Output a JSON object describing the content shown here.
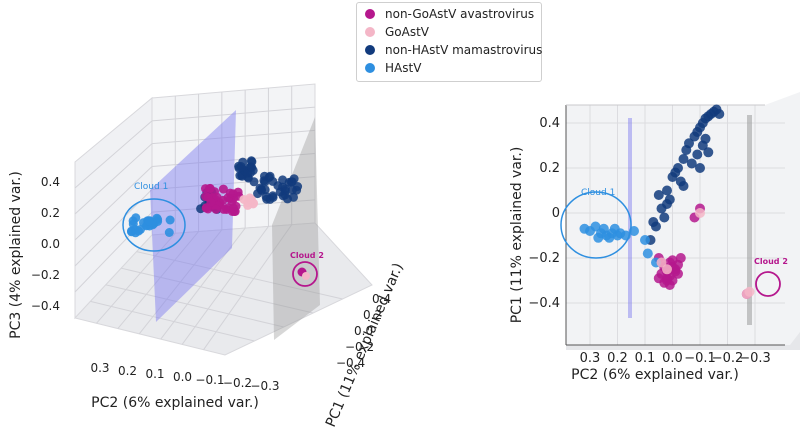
{
  "chart_data": [
    {
      "type": "scatter",
      "projection": "3d",
      "xlabel": "PC1 (11% explained var.)",
      "ylabel": "PC2 (6% explained var.)",
      "zlabel": "PC3 (4% explained var.)",
      "x_ticks": [
        "0.4",
        "0.2",
        "0.0",
        "−0.2",
        "−0.4"
      ],
      "y_ticks": [
        "0.3",
        "0.2",
        "0.1",
        "0.0",
        "−0.1",
        "−0.2",
        "−0.3"
      ],
      "z_ticks": [
        "0.4",
        "0.2",
        "0.0",
        "−0.2",
        "−0.4"
      ],
      "annotations": [
        "Cloud 1",
        "Cloud 2"
      ],
      "series": [
        {
          "name": "non-GoAstV avastrovirus",
          "color": "#b5178d"
        },
        {
          "name": "GoAstV",
          "color": "#f4b6c7"
        },
        {
          "name": "non-HAstV mamastrovirus",
          "color": "#123b7d"
        },
        {
          "name": "HAstV",
          "color": "#2e8fe0"
        }
      ]
    },
    {
      "type": "scatter",
      "projection": "3d",
      "xlabel": "PC2 (6% explained var.)",
      "ylabel": "PC1 (11% explained var.)",
      "x_ticks": [
        "0.3",
        "0.2",
        "0.1",
        "0.0",
        "−0.1",
        "−0.2",
        "−0.3"
      ],
      "y_ticks": [
        "0.4",
        "0.2",
        "0",
        "−0.2",
        "−0.4"
      ],
      "annotations": [
        "Cloud 1",
        "Cloud 2"
      ],
      "points": {
        "HAstV": {
          "pc2": [
            0.28,
            0.3,
            0.26,
            0.24,
            0.22,
            0.2,
            0.17,
            0.14,
            0.1,
            0.06,
            0.32,
            0.27,
            0.25,
            0.23,
            0.21,
            0.19,
            0.09
          ],
          "pc1": [
            -0.06,
            -0.08,
            -0.09,
            -0.1,
            -0.09,
            -0.1,
            -0.1,
            -0.08,
            -0.12,
            -0.22,
            -0.07,
            -0.11,
            -0.07,
            -0.11,
            -0.07,
            -0.09,
            -0.18
          ]
        },
        "non-HAstV mamastrovirus": {
          "pc2": [
            0.08,
            0.06,
            0.04,
            0.02,
            0.0,
            -0.02,
            -0.04,
            -0.05,
            -0.06,
            -0.08,
            -0.09,
            -0.1,
            -0.11,
            -0.12,
            -0.13,
            -0.14,
            -0.15,
            -0.16,
            0.03,
            0.01,
            -0.03,
            -0.07,
            -0.11,
            -0.13,
            0.05,
            -0.01,
            -0.09,
            -0.12,
            -0.17,
            0.07,
            0.02,
            -0.04,
            -0.1
          ],
          "pc1": [
            -0.12,
            -0.06,
            0.02,
            0.1,
            0.16,
            0.2,
            0.24,
            0.28,
            0.31,
            0.34,
            0.36,
            0.38,
            0.4,
            0.42,
            0.43,
            0.44,
            0.45,
            0.46,
            -0.02,
            0.06,
            0.14,
            0.22,
            0.3,
            0.27,
            0.08,
            0.18,
            0.26,
            0.33,
            0.44,
            -0.04,
            0.04,
            0.12,
            0.2
          ]
        },
        "non-GoAstV avastrovirus": {
          "pc2": [
            0.05,
            0.04,
            0.03,
            0.02,
            0.01,
            0.0,
            -0.01,
            -0.02,
            0.04,
            0.02,
            0.0,
            -0.02,
            0.03,
            0.01,
            -0.01,
            0.02,
            0.0,
            -0.03,
            0.05,
            0.01,
            -0.08,
            -0.1,
            -0.27
          ],
          "pc1": [
            -0.2,
            -0.22,
            -0.24,
            -0.26,
            -0.28,
            -0.3,
            -0.25,
            -0.23,
            -0.27,
            -0.29,
            -0.21,
            -0.27,
            -0.31,
            -0.22,
            -0.26,
            -0.3,
            -0.24,
            -0.2,
            -0.29,
            -0.32,
            -0.02,
            0.02,
            -0.36
          ]
        },
        "GoAstV": {
          "pc2": [
            -0.28,
            -0.27,
            -0.1,
            0.04,
            0.02
          ],
          "pc1": [
            -0.35,
            -0.36,
            0.0,
            -0.22,
            -0.25
          ]
        }
      },
      "series": [
        {
          "name": "non-GoAstV avastrovirus",
          "color": "#b5178d"
        },
        {
          "name": "GoAstV",
          "color": "#f4b6c7"
        },
        {
          "name": "non-HAstV mamastrovirus",
          "color": "#123b7d"
        },
        {
          "name": "HAstV",
          "color": "#2e8fe0"
        }
      ]
    }
  ]
}
